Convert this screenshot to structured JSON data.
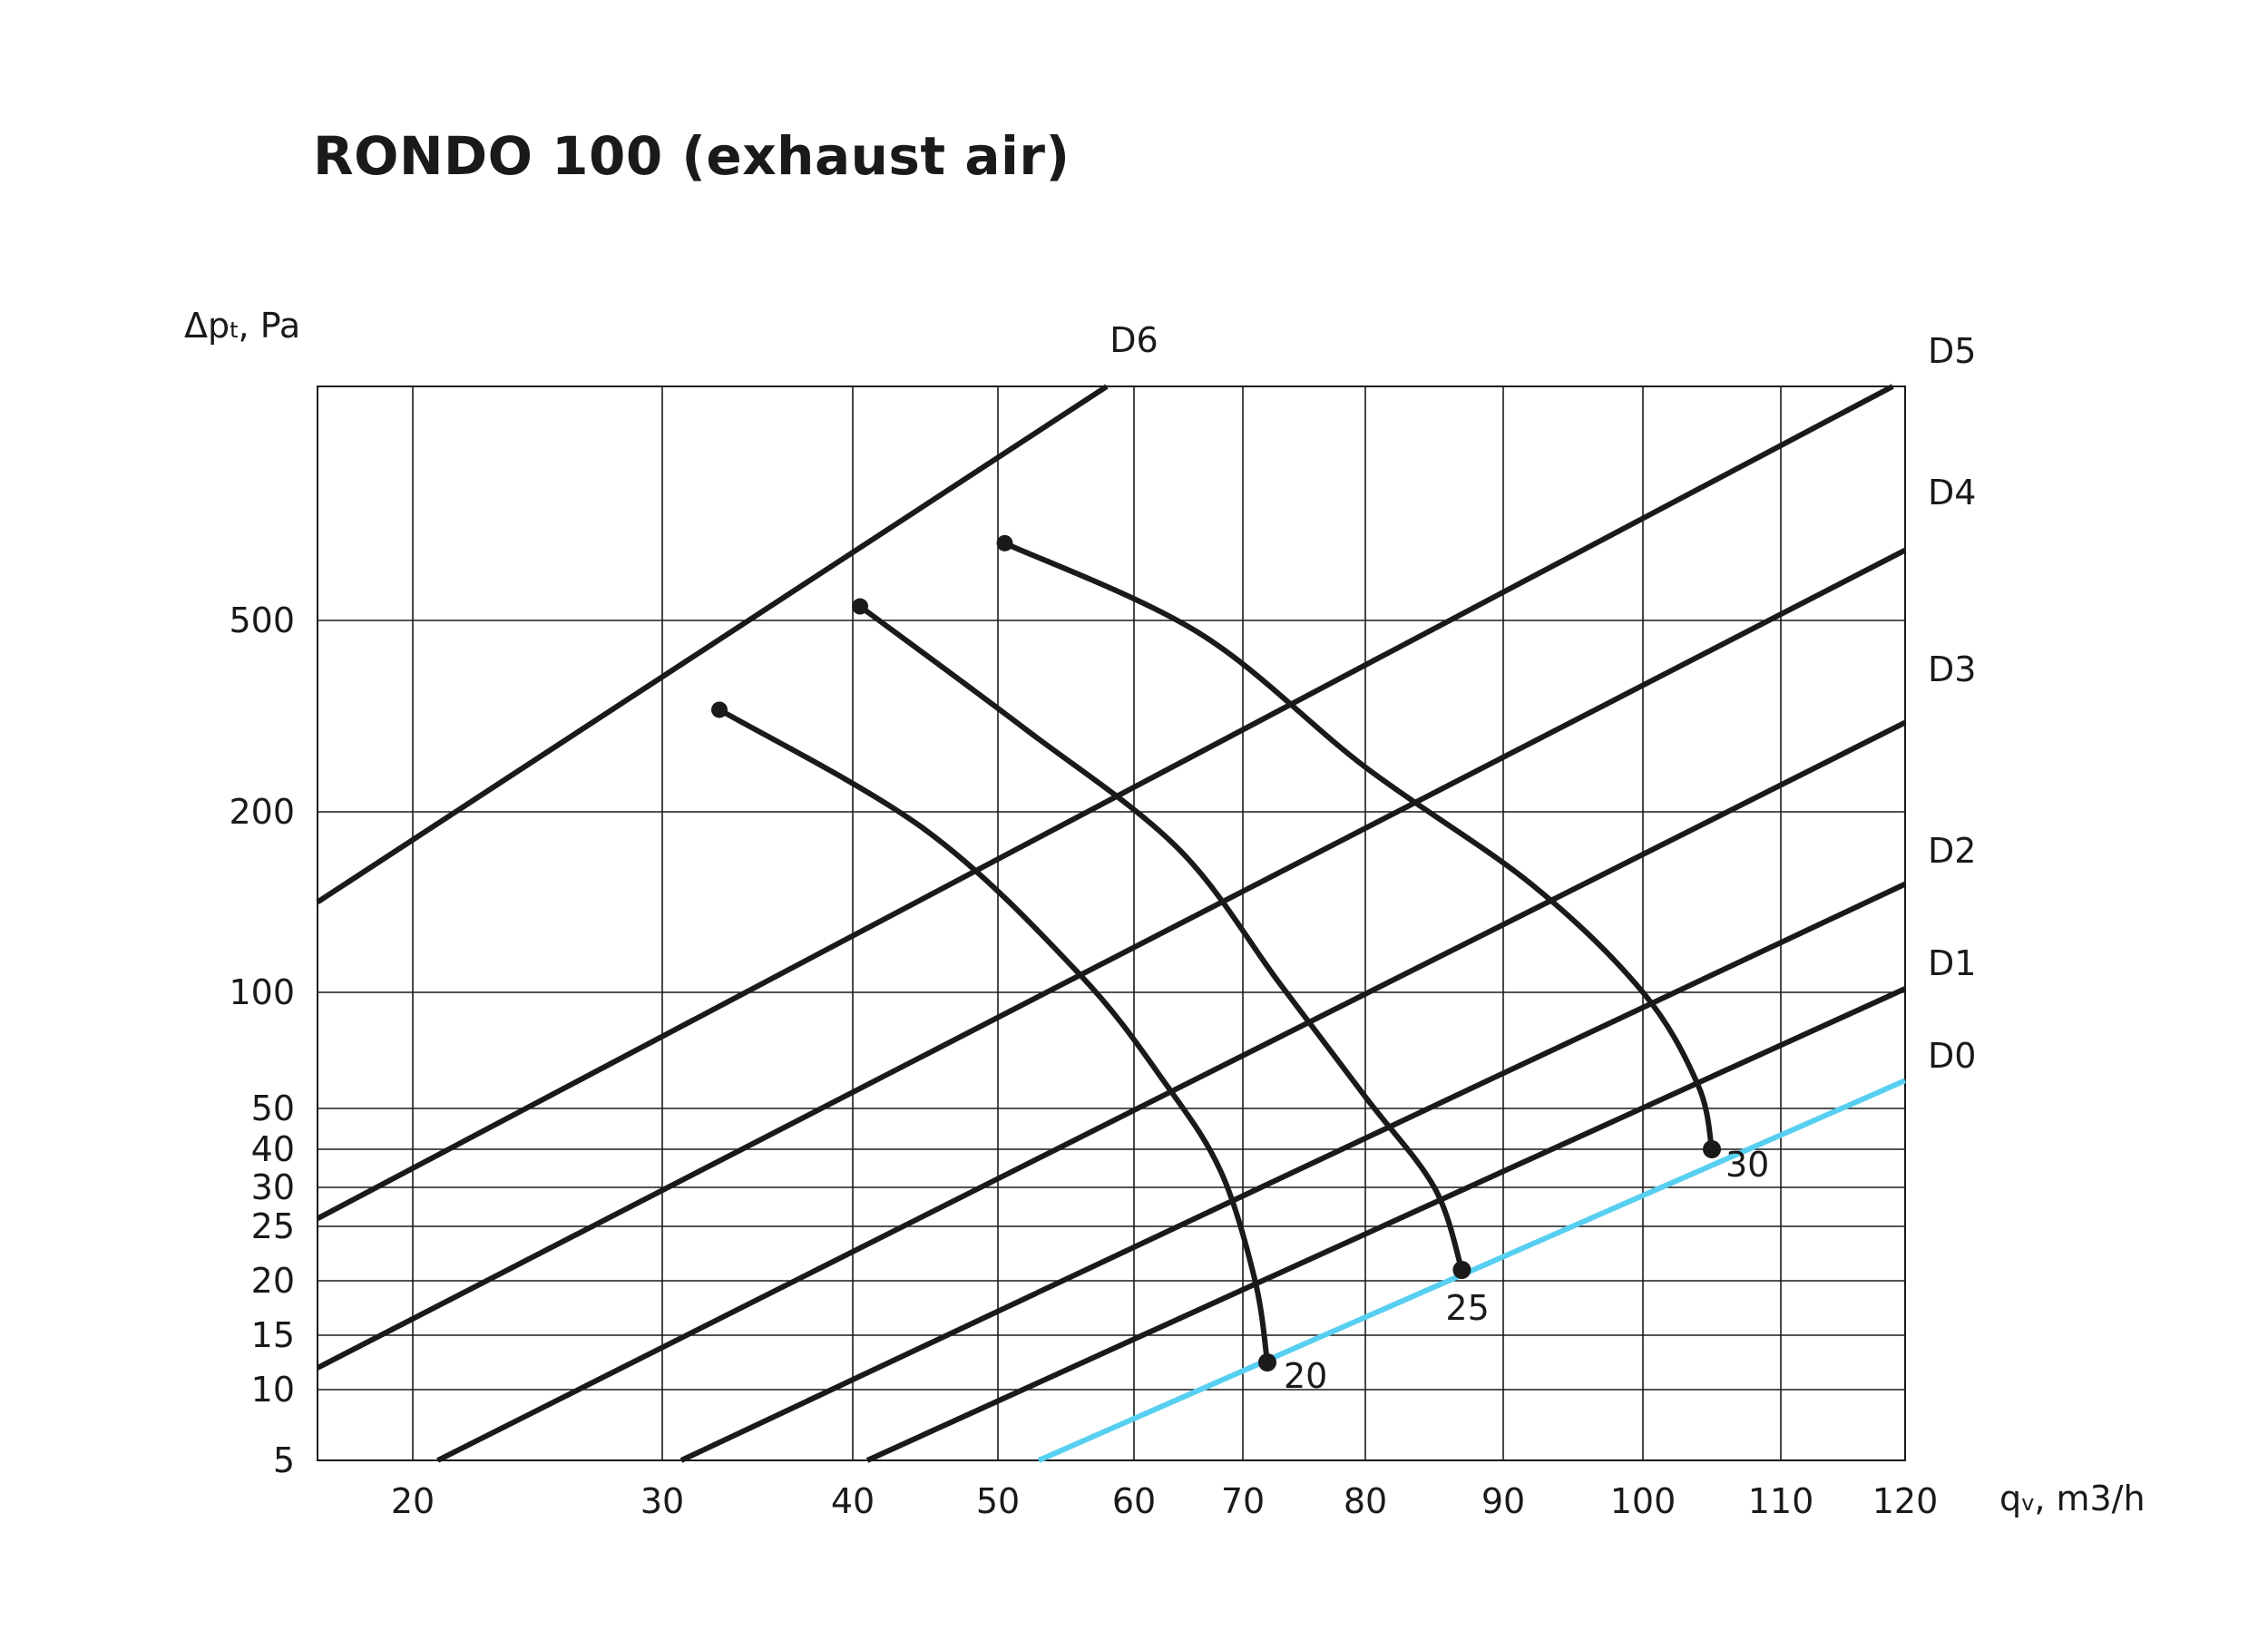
{
  "chart_data": {
    "type": "line",
    "title": "RONDO 100 (exhaust air)",
    "ylabel": {
      "main": "Δp",
      "sub": "t",
      "rest": ", Pa"
    },
    "xlabel": {
      "main": "q",
      "sub": "v",
      "rest": ", m3/h"
    },
    "x_scale": "piecewise",
    "y_scale": "piecewise",
    "x_ticks": [
      20,
      30,
      40,
      50,
      60,
      70,
      80,
      90,
      100,
      110,
      120
    ],
    "y_ticks": [
      5,
      10,
      15,
      20,
      25,
      30,
      40,
      50,
      100,
      200,
      500
    ],
    "y_top_value": 1500,
    "grid": true,
    "x_grid": [
      20,
      30,
      40,
      50,
      60,
      70,
      80,
      90,
      100,
      110,
      120
    ],
    "y_grid": [
      5,
      10,
      15,
      20,
      25,
      30,
      40,
      50,
      100,
      200,
      500
    ],
    "damper_series": [
      {
        "name": "D6",
        "color": "#1a1a1a",
        "points": [
          [
            16,
            150
          ],
          [
            58,
            1500
          ]
        ]
      },
      {
        "name": "D5",
        "color": "#1a1a1a",
        "points": [
          [
            16,
            26
          ],
          [
            119,
            1500
          ]
        ]
      },
      {
        "name": "D4",
        "color": "#1a1a1a",
        "points": [
          [
            16,
            12
          ],
          [
            120,
            800
          ]
        ]
      },
      {
        "name": "D3",
        "color": "#1a1a1a",
        "points": [
          [
            21,
            5
          ],
          [
            120,
            340
          ]
        ]
      },
      {
        "name": "D2",
        "color": "#1a1a1a",
        "points": [
          [
            31,
            5
          ],
          [
            120,
            160
          ]
        ]
      },
      {
        "name": "D1",
        "color": "#1a1a1a",
        "points": [
          [
            41,
            5
          ],
          [
            120,
            102
          ]
        ]
      },
      {
        "name": "D0",
        "color": "#57cff0",
        "points": [
          [
            53,
            5
          ],
          [
            120,
            62
          ]
        ]
      }
    ],
    "setting_curves": [
      {
        "label": "20",
        "points": [
          [
            33,
            360
          ],
          [
            45,
            190
          ],
          [
            56,
            110
          ],
          [
            63,
            60
          ],
          [
            68,
            34
          ],
          [
            71,
            20
          ],
          [
            72,
            12.5
          ]
        ]
      },
      {
        "label": "25",
        "points": [
          [
            40.5,
            560
          ],
          [
            52,
            330
          ],
          [
            64,
            180
          ],
          [
            73,
            105
          ],
          [
            80,
            55
          ],
          [
            85,
            30
          ],
          [
            87,
            21
          ]
        ]
      },
      {
        "label": "30",
        "points": [
          [
            50.5,
            830
          ],
          [
            66,
            480
          ],
          [
            80,
            270
          ],
          [
            92,
            160
          ],
          [
            100,
            100
          ],
          [
            104,
            60
          ],
          [
            105,
            40
          ]
        ]
      }
    ]
  }
}
